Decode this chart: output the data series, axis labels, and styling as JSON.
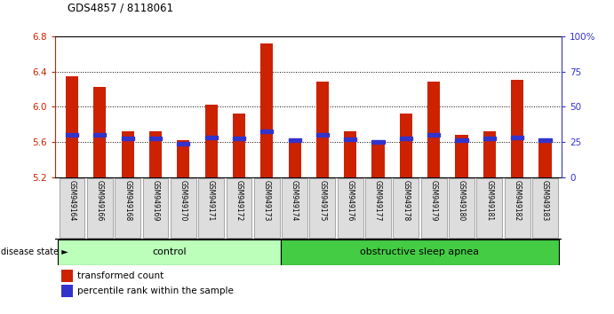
{
  "title": "GDS4857 / 8118061",
  "samples": [
    "GSM949164",
    "GSM949166",
    "GSM949168",
    "GSM949169",
    "GSM949170",
    "GSM949171",
    "GSM949172",
    "GSM949173",
    "GSM949174",
    "GSM949175",
    "GSM949176",
    "GSM949177",
    "GSM949178",
    "GSM949179",
    "GSM949180",
    "GSM949181",
    "GSM949182",
    "GSM949183"
  ],
  "bar_values": [
    6.35,
    6.22,
    5.72,
    5.72,
    5.62,
    6.02,
    5.92,
    6.72,
    5.63,
    6.28,
    5.72,
    5.58,
    5.92,
    6.28,
    5.68,
    5.72,
    6.3,
    5.62
  ],
  "blue_values": [
    5.68,
    5.68,
    5.64,
    5.64,
    5.58,
    5.65,
    5.64,
    5.72,
    5.62,
    5.68,
    5.63,
    5.6,
    5.64,
    5.68,
    5.62,
    5.64,
    5.65,
    5.62
  ],
  "control_count": 8,
  "ylim_left": [
    5.2,
    6.8
  ],
  "ylim_right": [
    0,
    100
  ],
  "yticks_left": [
    5.2,
    5.6,
    6.0,
    6.4,
    6.8
  ],
  "yticks_right": [
    0,
    25,
    50,
    75,
    100
  ],
  "bar_color": "#cc2200",
  "blue_color": "#3333cc",
  "control_color": "#bbffbb",
  "apnea_color": "#44cc44",
  "ticklabel_bg": "#dddddd",
  "control_label": "control",
  "apnea_label": "obstructive sleep apnea",
  "disease_state_label": "disease state",
  "legend_red_label": "transformed count",
  "legend_blue_label": "percentile rank within the sample"
}
